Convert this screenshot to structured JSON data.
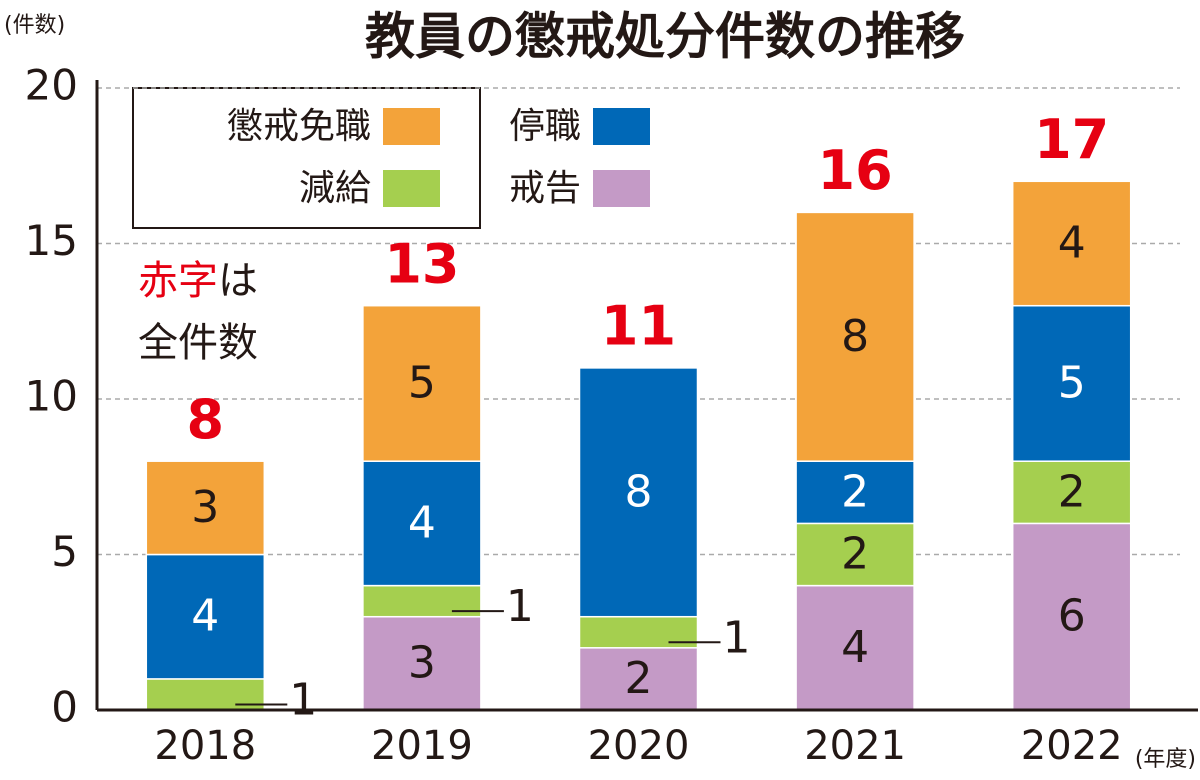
{
  "chart_data": {
    "type": "stacked_bar",
    "title": "教員の懲戒処分件数の推移",
    "y_label": "(件数)",
    "x_label": "(年度)",
    "annotation": {
      "highlight": "赤字",
      "rest": "は",
      "line2": "全件数",
      "color": "#e60012"
    },
    "categories": [
      "2018",
      "2019",
      "2020",
      "2021",
      "2022"
    ],
    "series": [
      {
        "name": "戒告",
        "color": "#c49ac6",
        "label_color": "#231815",
        "values": [
          0,
          3,
          2,
          4,
          6
        ]
      },
      {
        "name": "減給",
        "color": "#a5cf4f",
        "label_color": "#231815",
        "values": [
          1,
          1,
          1,
          2,
          2
        ]
      },
      {
        "name": "停職",
        "color": "#0068b7",
        "label_color": "#ffffff",
        "values": [
          4,
          4,
          8,
          2,
          5
        ]
      },
      {
        "name": "懲戒免職",
        "color": "#f3a33a",
        "label_color": "#231815",
        "values": [
          3,
          5,
          0,
          8,
          4
        ]
      }
    ],
    "totals": [
      8,
      13,
      11,
      16,
      17
    ],
    "totals_color": "#e60012",
    "ylim": [
      0,
      20
    ],
    "yticks": [
      0,
      5,
      10,
      15,
      20
    ],
    "grid": true
  }
}
